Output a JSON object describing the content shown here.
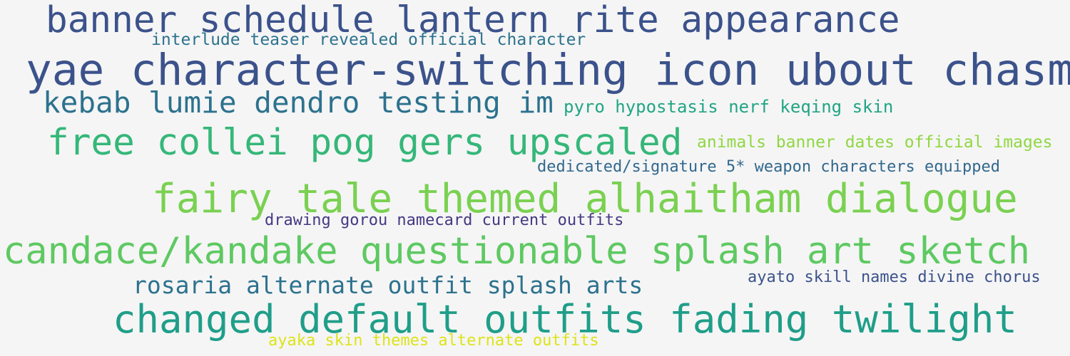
{
  "words": [
    {
      "text": "banner schedule lantern rite appearance",
      "color": "#3b528b"
    },
    {
      "text": "interlude teaser revealed official character",
      "color": "#2c728e"
    },
    {
      "text": "yae character-switching icon ubout chasm",
      "color": "#3b528b"
    },
    {
      "text": "kebab lumie dendro testing im",
      "color": "#2c728e"
    },
    {
      "text": "pyro hypostasis nerf keqing skin",
      "color": "#21a585"
    },
    {
      "text": "free collei pog gers upscaled",
      "color": "#35b779"
    },
    {
      "text": "animals banner dates official images",
      "color": "#90d743"
    },
    {
      "text": "dedicated/signature 5* weapon characters equipped",
      "color": "#31688e"
    },
    {
      "text": "fairy tale themed alhaitham dialogue",
      "color": "#7ad151"
    },
    {
      "text": "drawing gorou namecard current outfits",
      "color": "#443983"
    },
    {
      "text": "candace/kandake questionable splash art sketch",
      "color": "#5ec962"
    },
    {
      "text": "rosaria alternate outfit splash arts",
      "color": "#2c728e"
    },
    {
      "text": "ayato skill names divine chorus",
      "color": "#3b528b"
    },
    {
      "text": "changed default outfits fading twilight",
      "color": "#1f9e89"
    },
    {
      "text": "ayaka skin themes alternate outfits",
      "color": "#dde318"
    }
  ]
}
